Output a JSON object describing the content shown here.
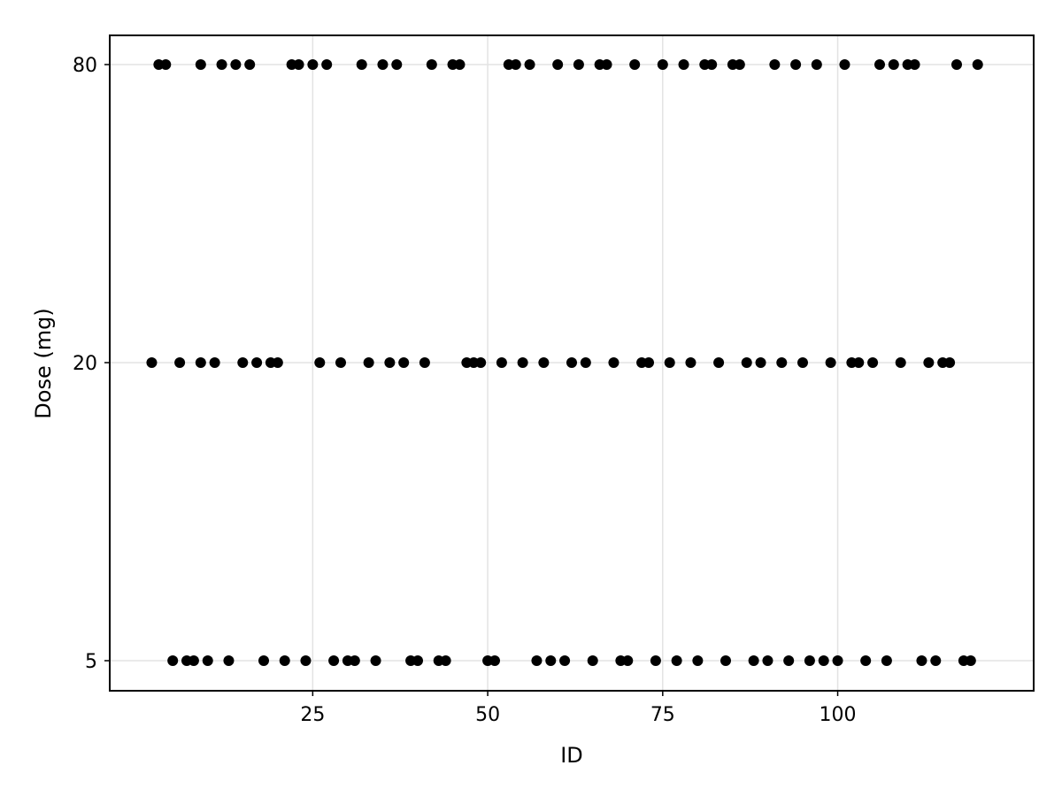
{
  "chart_data": {
    "type": "scatter",
    "title": "",
    "xlabel": "ID",
    "ylabel": "Dose (mg)",
    "x_ticks": [
      25,
      50,
      75,
      100
    ],
    "y_categories": [
      "5",
      "20",
      "80"
    ],
    "xlim": [
      -4,
      128
    ],
    "grid": true,
    "marker_color": "#000000",
    "series": [
      {
        "y": "80",
        "x": [
          3,
          4,
          9,
          12,
          14,
          16,
          22,
          23,
          25,
          27,
          32,
          35,
          37,
          42,
          45,
          46,
          53,
          54,
          56,
          60,
          63,
          66,
          67,
          71,
          75,
          78,
          81,
          82,
          85,
          86,
          91,
          94,
          97,
          101,
          106,
          108,
          110,
          111,
          117,
          120
        ]
      },
      {
        "y": "20",
        "x": [
          2,
          6,
          9,
          11,
          15,
          17,
          19,
          20,
          26,
          29,
          33,
          36,
          38,
          41,
          47,
          48,
          49,
          52,
          55,
          58,
          62,
          64,
          68,
          72,
          73,
          76,
          79,
          83,
          87,
          89,
          92,
          95,
          99,
          102,
          103,
          105,
          109,
          113,
          115,
          116
        ]
      },
      {
        "y": "5",
        "x": [
          5,
          7,
          8,
          10,
          13,
          18,
          21,
          24,
          28,
          30,
          31,
          34,
          39,
          40,
          43,
          44,
          50,
          51,
          57,
          59,
          61,
          65,
          69,
          70,
          74,
          77,
          80,
          84,
          88,
          90,
          93,
          96,
          98,
          100,
          104,
          107,
          112,
          114,
          118,
          119
        ]
      }
    ]
  }
}
